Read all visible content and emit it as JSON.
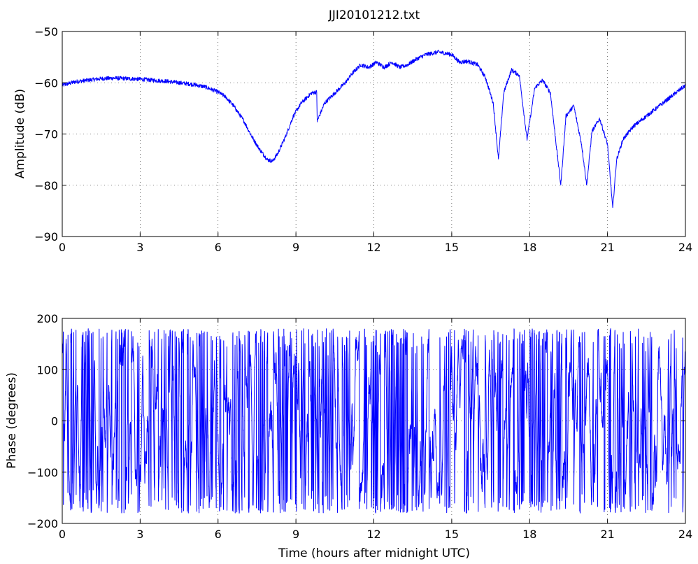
{
  "chart_data": [
    {
      "type": "line",
      "title": "JJI20101212.txt",
      "xlabel": "",
      "ylabel": "Amplitude (dB)",
      "xlim": [
        0,
        24
      ],
      "ylim": [
        -90,
        -50
      ],
      "xticks": [
        0,
        3,
        6,
        9,
        12,
        15,
        18,
        21,
        24
      ],
      "yticks": [
        -90,
        -80,
        -70,
        -60,
        -50
      ],
      "grid": true,
      "line_color": "#0000ff",
      "x": [
        0,
        0.5,
        1,
        1.5,
        2,
        2.5,
        3,
        3.5,
        4,
        4.5,
        5,
        5.5,
        6,
        6.3,
        6.6,
        7,
        7.3,
        7.6,
        7.9,
        8.1,
        8.3,
        8.6,
        8.9,
        9.2,
        9.6,
        9.8,
        9.82,
        10.1,
        10.5,
        10.9,
        11.2,
        11.5,
        11.8,
        12.1,
        12.4,
        12.7,
        13.0,
        13.3,
        13.6,
        14.0,
        14.5,
        15.0,
        15.3,
        15.6,
        16.0,
        16.3,
        16.6,
        16.8,
        17.0,
        17.3,
        17.6,
        17.9,
        18.2,
        18.5,
        18.8,
        19.0,
        19.2,
        19.4,
        19.7,
        20.0,
        20.2,
        20.4,
        20.7,
        21.0,
        21.2,
        21.35,
        21.6,
        22.0,
        22.5,
        23.0,
        23.5,
        24.0
      ],
      "y": [
        -60.5,
        -59.8,
        -59.5,
        -59.2,
        -59.1,
        -59.2,
        -59.3,
        -59.5,
        -59.7,
        -60.0,
        -60.3,
        -60.8,
        -61.8,
        -62.8,
        -64.5,
        -67.5,
        -70.5,
        -73.0,
        -75.0,
        -75.3,
        -73.8,
        -70.5,
        -66.5,
        -64.0,
        -62.0,
        -61.8,
        -67.5,
        -64.0,
        -62.0,
        -60.0,
        -58.0,
        -56.5,
        -57.0,
        -56.0,
        -57.0,
        -56.0,
        -57.0,
        -56.5,
        -55.5,
        -54.5,
        -54.0,
        -54.5,
        -56.0,
        -55.8,
        -56.5,
        -59.0,
        -64.0,
        -75.0,
        -62.0,
        -57.5,
        -58.5,
        -71.0,
        -61.0,
        -59.5,
        -62.0,
        -71.0,
        -80.0,
        -66.5,
        -64.5,
        -72.0,
        -80.0,
        -69.5,
        -67.0,
        -72.0,
        -84.5,
        -75.0,
        -71.0,
        -68.5,
        -66.5,
        -64.5,
        -62.5,
        -60.5
      ],
      "noise": 0.4
    },
    {
      "type": "line",
      "title": "",
      "xlabel": "Time (hours after midnight UTC)",
      "ylabel": "Phase (degrees)",
      "xlim": [
        0,
        24
      ],
      "ylim": [
        -200,
        200
      ],
      "xticks": [
        0,
        3,
        6,
        9,
        12,
        15,
        18,
        21,
        24
      ],
      "yticks": [
        -200,
        -100,
        0,
        100,
        200
      ],
      "grid": true,
      "line_color": "#0000ff",
      "range": [
        -180,
        180
      ],
      "description": "rapidly wrapping phase between -180 and 180 degrees"
    }
  ]
}
